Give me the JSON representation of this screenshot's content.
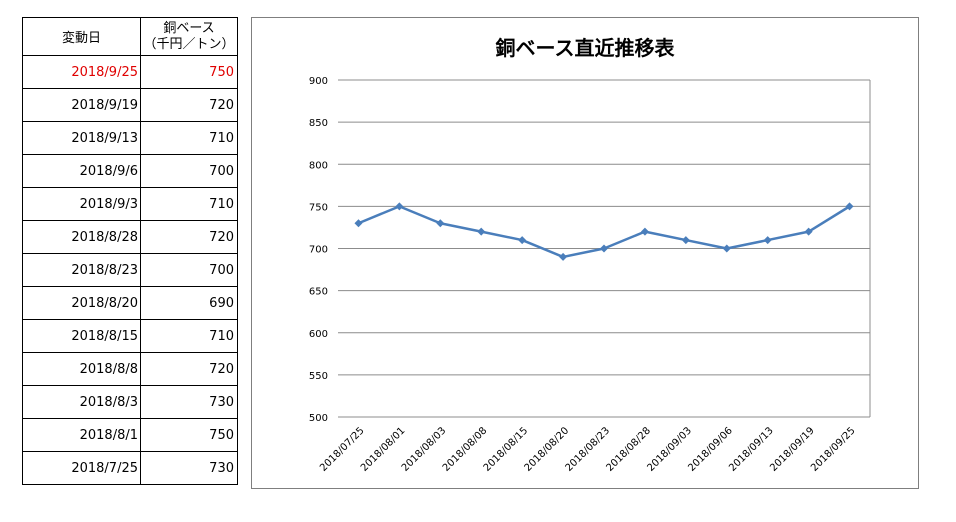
{
  "table": {
    "header_date": "変動日",
    "header_value_line1": "銅ベース",
    "header_value_line2": "（千円／トン）",
    "rows": [
      {
        "date": "2018/9/25",
        "value": "750",
        "highlight": true
      },
      {
        "date": "2018/9/19",
        "value": "720",
        "highlight": false
      },
      {
        "date": "2018/9/13",
        "value": "710",
        "highlight": false
      },
      {
        "date": "2018/9/6",
        "value": "700",
        "highlight": false
      },
      {
        "date": "2018/9/3",
        "value": "710",
        "highlight": false
      },
      {
        "date": "2018/8/28",
        "value": "720",
        "highlight": false
      },
      {
        "date": "2018/8/23",
        "value": "700",
        "highlight": false
      },
      {
        "date": "2018/8/20",
        "value": "690",
        "highlight": false
      },
      {
        "date": "2018/8/15",
        "value": "710",
        "highlight": false
      },
      {
        "date": "2018/8/8",
        "value": "720",
        "highlight": false
      },
      {
        "date": "2018/8/3",
        "value": "730",
        "highlight": false
      },
      {
        "date": "2018/8/1",
        "value": "750",
        "highlight": false
      },
      {
        "date": "2018/7/25",
        "value": "730",
        "highlight": false
      }
    ],
    "highlight_color": "#e00000"
  },
  "chart_data": {
    "type": "line",
    "title": "銅ベース直近推移表",
    "categories": [
      "2018/07/25",
      "2018/08/01",
      "2018/08/03",
      "2018/08/08",
      "2018/08/15",
      "2018/08/20",
      "2018/08/23",
      "2018/08/28",
      "2018/09/03",
      "2018/09/06",
      "2018/09/13",
      "2018/09/19",
      "2018/09/25"
    ],
    "series": [
      {
        "values": [
          730,
          750,
          730,
          720,
          710,
          690,
          700,
          720,
          710,
          700,
          710,
          720,
          750
        ],
        "color": "#4a7ebb"
      }
    ],
    "ylim": [
      500,
      900
    ],
    "yticks": [
      "500",
      "550",
      "600",
      "650",
      "700",
      "750",
      "800",
      "850",
      "900"
    ],
    "grid": true,
    "legend": false
  }
}
